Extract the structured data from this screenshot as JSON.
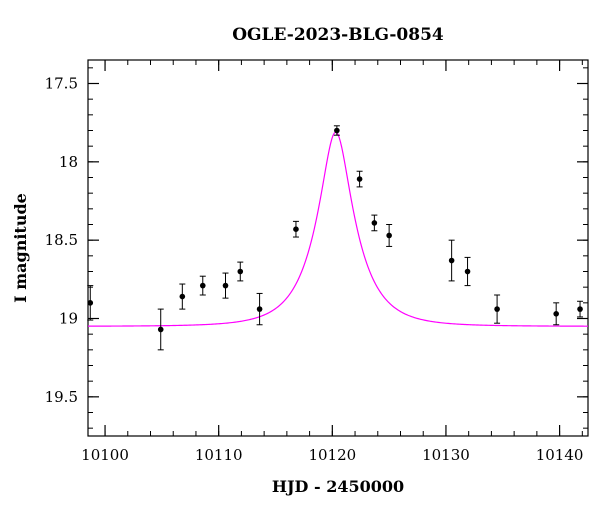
{
  "chart_data": {
    "type": "scatter",
    "title": "OGLE-2023-BLG-0854",
    "xlabel": "HJD - 2450000",
    "ylabel": "I magnitude",
    "xlim": [
      10098.5,
      10142.5
    ],
    "ylim": [
      19.75,
      17.35
    ],
    "y_inverted": true,
    "grid": false,
    "x_ticks": [
      10100,
      10110,
      10120,
      10130,
      10140
    ],
    "x_tick_labels": [
      "10100",
      "10110",
      "10120",
      "10130",
      "10140"
    ],
    "y_ticks": [
      17.5,
      18,
      18.5,
      19,
      19.5
    ],
    "y_tick_labels": [
      "17.5",
      "18",
      "18.5",
      "19",
      "19.5"
    ],
    "x_minor_step": 2,
    "y_minor_step": 0.1,
    "series": [
      {
        "kind": "points",
        "color": "#000000",
        "points": [
          {
            "x": 10098.7,
            "y": 18.9,
            "err": 0.11
          },
          {
            "x": 10104.9,
            "y": 19.07,
            "err": 0.13
          },
          {
            "x": 10106.8,
            "y": 18.86,
            "err": 0.08
          },
          {
            "x": 10108.6,
            "y": 18.79,
            "err": 0.06
          },
          {
            "x": 10110.6,
            "y": 18.79,
            "err": 0.08
          },
          {
            "x": 10111.9,
            "y": 18.7,
            "err": 0.06
          },
          {
            "x": 10113.6,
            "y": 18.94,
            "err": 0.1
          },
          {
            "x": 10116.8,
            "y": 18.43,
            "err": 0.05
          },
          {
            "x": 10120.4,
            "y": 17.8,
            "err": 0.03
          },
          {
            "x": 10122.4,
            "y": 18.11,
            "err": 0.05
          },
          {
            "x": 10123.7,
            "y": 18.39,
            "err": 0.05
          },
          {
            "x": 10125.0,
            "y": 18.47,
            "err": 0.07
          },
          {
            "x": 10130.5,
            "y": 18.63,
            "err": 0.13
          },
          {
            "x": 10131.9,
            "y": 18.7,
            "err": 0.09
          },
          {
            "x": 10134.5,
            "y": 18.94,
            "err": 0.09
          },
          {
            "x": 10139.7,
            "y": 18.97,
            "err": 0.07
          },
          {
            "x": 10141.8,
            "y": 18.94,
            "err": 0.05
          }
        ]
      },
      {
        "kind": "model-curve",
        "color": "#ff00ff",
        "model": {
          "t0": 10120.3,
          "tE": 3.3,
          "u0": 0.35,
          "base_mag": 19.05,
          "peak_mag": 17.81
        }
      }
    ]
  }
}
